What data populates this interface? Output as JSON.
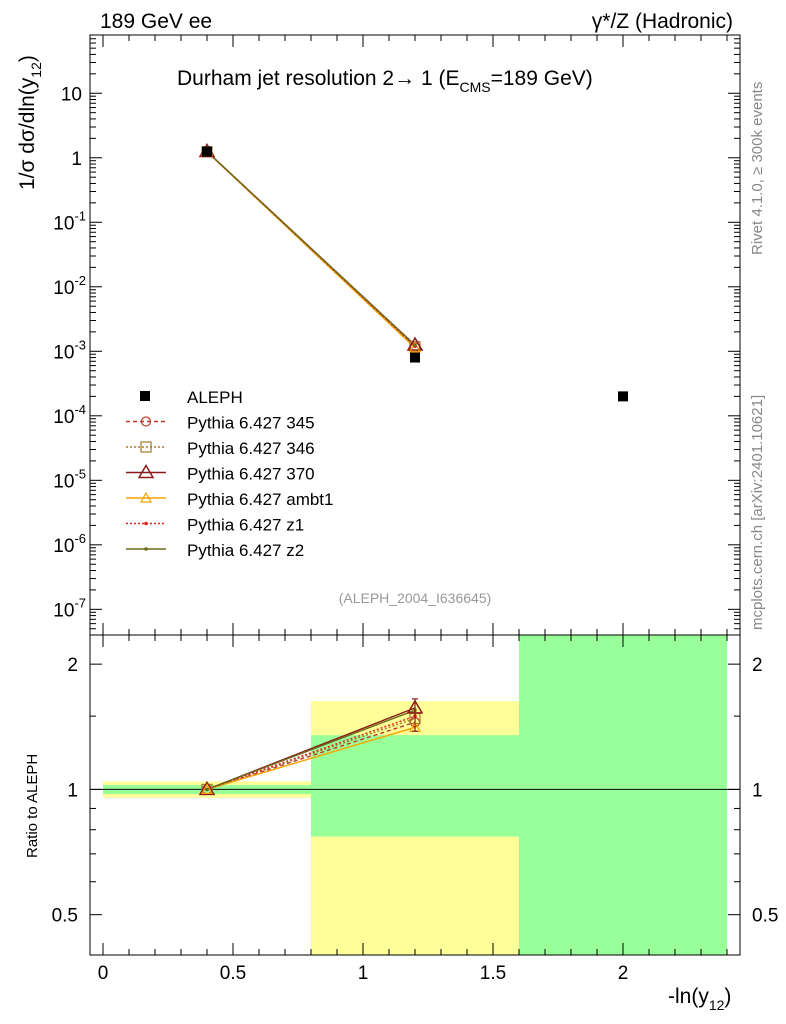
{
  "header": {
    "left_label": "189 GeV ee",
    "right_label": "γ*/Z (Hadronic)"
  },
  "side_labels": {
    "rivet": "Rivet 4.1.0, ≥ 300k events",
    "mcplots": "mcplots.cern.ch [arXiv:2401.10621]"
  },
  "chart_data": [
    {
      "type": "scatter",
      "name": "main-panel",
      "title": "Durham jet resolution 2→ 1 (E",
      "title_sub": "CMS",
      "title_tail": "=189 GeV)",
      "ylabel": "1/σ  dσ/dln(y",
      "ylabel_sub": "12",
      "ylabel_tail": ")",
      "yscale": "log",
      "ylim": [
        4e-08,
        80
      ],
      "xlim": [
        -0.05,
        2.45
      ],
      "y_ticks": [
        {
          "label": "10",
          "exp": "-7",
          "v": 1e-07
        },
        {
          "label": "10",
          "exp": "-6",
          "v": 1e-06
        },
        {
          "label": "10",
          "exp": "-5",
          "v": 1e-05
        },
        {
          "label": "10",
          "exp": "-4",
          "v": 0.0001
        },
        {
          "label": "10",
          "exp": "-3",
          "v": 0.001
        },
        {
          "label": "10",
          "exp": "-2",
          "v": 0.01
        },
        {
          "label": "10",
          "exp": "-1",
          "v": 0.1
        },
        {
          "label": "1",
          "exp": "",
          "v": 1
        },
        {
          "label": "10",
          "exp": "",
          "v": 10
        }
      ],
      "watermark": "(ALEPH_2004_I636645)",
      "data": {
        "name": "ALEPH",
        "points": [
          {
            "x": 0.4,
            "y": 1.25
          },
          {
            "x": 1.2,
            "y": 0.0008
          },
          {
            "x": 2.0,
            "y": 0.0002
          }
        ]
      },
      "series": [
        {
          "name": "Pythia 6.427 345",
          "color": "#c0392b",
          "dash": "4,3",
          "marker": "circle",
          "x": [
            0.4,
            1.2
          ],
          "y": [
            1.24,
            0.00115
          ]
        },
        {
          "name": "Pythia 6.427 346",
          "color": "#a57a2c",
          "dash": "2,2",
          "marker": "square",
          "x": [
            0.4,
            1.2
          ],
          "y": [
            1.24,
            0.00118
          ]
        },
        {
          "name": "Pythia 6.427 370",
          "color": "#8b1a1a",
          "dash": "",
          "marker": "triangle",
          "x": [
            0.4,
            1.2
          ],
          "y": [
            1.25,
            0.00125
          ]
        },
        {
          "name": "Pythia 6.427 ambt1",
          "color": "#f5a300",
          "dash": "",
          "marker": "triangle-open",
          "x": [
            0.4,
            1.2
          ],
          "y": [
            1.24,
            0.00113
          ]
        },
        {
          "name": "Pythia 6.427 z1",
          "color": "#e0201b",
          "dash": "2,2",
          "marker": "dot",
          "x": [
            0.4,
            1.2
          ],
          "y": [
            1.24,
            0.0012
          ]
        },
        {
          "name": "Pythia 6.427 z2",
          "color": "#6b6b1a",
          "dash": "",
          "marker": "dot",
          "x": [
            0.4,
            1.2
          ],
          "y": [
            1.25,
            0.00124
          ]
        }
      ]
    },
    {
      "type": "scatter",
      "name": "ratio-panel",
      "ylabel": "Ratio to ALEPH",
      "yscale": "log",
      "ylim": [
        0.4,
        2.35
      ],
      "xlim": [
        -0.05,
        2.45
      ],
      "xlabel": "-ln(y",
      "xlabel_sub": "12",
      "xlabel_tail": ")",
      "x_ticks": [
        0,
        0.5,
        1,
        1.5,
        2
      ],
      "x_tick_labels": [
        "0",
        "0.5",
        "1",
        "1.5",
        "2"
      ],
      "y_ticks": [
        0.5,
        1,
        2
      ],
      "y_tick_labels": [
        "0.5",
        "1",
        "2"
      ],
      "bands": [
        {
          "x0": 0.0,
          "x1": 0.8,
          "yellow": [
            0.955,
            1.045
          ],
          "green": [
            0.975,
            1.025
          ]
        },
        {
          "x0": 0.8,
          "x1": 1.6,
          "yellow": [
            0.4,
            1.63
          ],
          "green": [
            0.77,
            1.35
          ]
        },
        {
          "x0": 1.6,
          "x1": 2.4,
          "yellow": [
            0.4,
            2.35
          ],
          "green": [
            0.4,
            2.35
          ]
        }
      ],
      "series": [
        {
          "name": "Pythia 6.427 345",
          "color": "#c0392b",
          "dash": "4,3",
          "marker": "circle",
          "x": [
            0.4,
            1.2
          ],
          "y": [
            1.0,
            1.45
          ]
        },
        {
          "name": "Pythia 6.427 346",
          "color": "#a57a2c",
          "dash": "2,2",
          "marker": "square",
          "x": [
            0.4,
            1.2
          ],
          "y": [
            1.0,
            1.48
          ]
        },
        {
          "name": "Pythia 6.427 370",
          "color": "#8b1a1a",
          "dash": "",
          "marker": "triangle",
          "x": [
            0.4,
            1.2
          ],
          "y": [
            1.0,
            1.57
          ]
        },
        {
          "name": "Pythia 6.427 ambt1",
          "color": "#f5a300",
          "dash": "",
          "marker": "triangle-open",
          "x": [
            0.4,
            1.2
          ],
          "y": [
            1.0,
            1.41
          ]
        },
        {
          "name": "Pythia 6.427 z1",
          "color": "#e0201b",
          "dash": "2,2",
          "marker": "dot",
          "x": [
            0.4,
            1.2
          ],
          "y": [
            1.0,
            1.5
          ]
        },
        {
          "name": "Pythia 6.427 z2",
          "color": "#6b6b1a",
          "dash": "",
          "marker": "dot",
          "x": [
            0.4,
            1.2
          ],
          "y": [
            1.0,
            1.55
          ]
        }
      ],
      "error_bar": {
        "x": 1.2,
        "y": 1.5,
        "lo": 1.38,
        "hi": 1.65
      }
    }
  ]
}
